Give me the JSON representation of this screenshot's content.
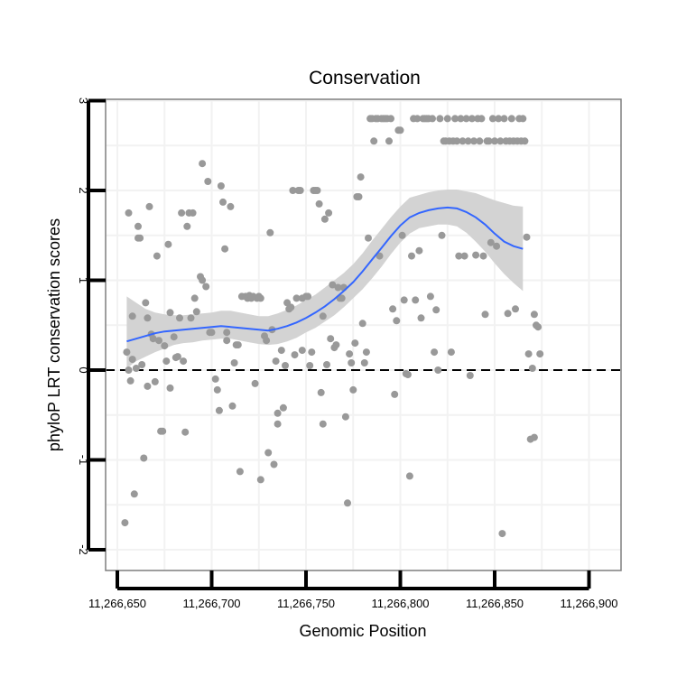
{
  "chart_data": {
    "type": "scatter",
    "title": "Conservation",
    "xlabel": "Genomic Position",
    "ylabel": "phyloP LRT conservation scores",
    "xlim": [
      11266645,
      11266908
    ],
    "ylim": [
      -2.2,
      3.05
    ],
    "x_ticks": [
      11266650,
      11266700,
      11266750,
      11266800,
      11266850,
      11266900
    ],
    "x_tick_labels": [
      "11,266,650",
      "11,266,700",
      "11,266,750",
      "11,266,800",
      "11,266,850",
      "11,266,900"
    ],
    "y_ticks": [
      -2,
      -1,
      0,
      1,
      2,
      3
    ],
    "y_tick_labels": [
      "-2",
      "-1",
      "0",
      "1",
      "2",
      "3"
    ],
    "reference_line": {
      "y": 0,
      "style": "dashed"
    },
    "grid": true,
    "colors": {
      "points": "#999999",
      "smooth": "#3366FF",
      "ribbon": "#D3D3D3",
      "panel_border": "#7F7F7F",
      "grid": "#F2F2F2",
      "reference": "#000000"
    },
    "points": [
      [
        11266654,
        -1.7
      ],
      [
        11266655,
        0.2
      ],
      [
        11266656,
        1.75
      ],
      [
        11266656,
        0.0
      ],
      [
        11266657,
        -0.12
      ],
      [
        11266658,
        0.6
      ],
      [
        11266658,
        0.12
      ],
      [
        11266659,
        -1.38
      ],
      [
        11266660,
        0.02
      ],
      [
        11266661,
        1.6
      ],
      [
        11266661,
        1.47
      ],
      [
        11266662,
        1.47
      ],
      [
        11266663,
        0.06
      ],
      [
        11266664,
        -0.98
      ],
      [
        11266665,
        0.75
      ],
      [
        11266666,
        -0.18
      ],
      [
        11266666,
        0.58
      ],
      [
        11266667,
        1.82
      ],
      [
        11266668,
        0.4
      ],
      [
        11266669,
        0.35
      ],
      [
        11266670,
        -0.13
      ],
      [
        11266671,
        1.27
      ],
      [
        11266672,
        0.33
      ],
      [
        11266673,
        -0.68
      ],
      [
        11266674,
        -0.68
      ],
      [
        11266675,
        0.27
      ],
      [
        11266676,
        0.1
      ],
      [
        11266677,
        1.4
      ],
      [
        11266678,
        -0.2
      ],
      [
        11266678,
        0.64
      ],
      [
        11266680,
        0.37
      ],
      [
        11266681,
        0.14
      ],
      [
        11266682,
        0.15
      ],
      [
        11266683,
        0.58
      ],
      [
        11266684,
        1.75
      ],
      [
        11266685,
        0.1
      ],
      [
        11266686,
        -0.69
      ],
      [
        11266687,
        1.6
      ],
      [
        11266688,
        1.75
      ],
      [
        11266689,
        0.58
      ],
      [
        11266690,
        1.75
      ],
      [
        11266691,
        0.8
      ],
      [
        11266692,
        0.65
      ],
      [
        11266694,
        1.04
      ],
      [
        11266695,
        2.3
      ],
      [
        11266695,
        1.0
      ],
      [
        11266697,
        0.93
      ],
      [
        11266698,
        2.1
      ],
      [
        11266699,
        0.42
      ],
      [
        11266700,
        0.42
      ],
      [
        11266702,
        -0.1
      ],
      [
        11266703,
        -0.22
      ],
      [
        11266704,
        -0.45
      ],
      [
        11266705,
        2.05
      ],
      [
        11266706,
        1.87
      ],
      [
        11266707,
        1.35
      ],
      [
        11266708,
        0.33
      ],
      [
        11266708,
        0.42
      ],
      [
        11266710,
        1.82
      ],
      [
        11266711,
        -0.4
      ],
      [
        11266712,
        0.08
      ],
      [
        11266713,
        0.28
      ],
      [
        11266714,
        0.28
      ],
      [
        11266715,
        -1.13
      ],
      [
        11266716,
        0.82
      ],
      [
        11266718,
        0.82
      ],
      [
        11266719,
        0.8
      ],
      [
        11266720,
        0.83
      ],
      [
        11266721,
        0.8
      ],
      [
        11266722,
        0.82
      ],
      [
        11266723,
        -0.15
      ],
      [
        11266724,
        0.8
      ],
      [
        11266725,
        0.82
      ],
      [
        11266726,
        0.8
      ],
      [
        11266726,
        -1.22
      ],
      [
        11266728,
        0.38
      ],
      [
        11266729,
        0.33
      ],
      [
        11266730,
        -0.92
      ],
      [
        11266731,
        1.53
      ],
      [
        11266732,
        0.45
      ],
      [
        11266733,
        -1.05
      ],
      [
        11266734,
        0.1
      ],
      [
        11266735,
        -0.48
      ],
      [
        11266735,
        -0.6
      ],
      [
        11266737,
        0.22
      ],
      [
        11266738,
        -0.42
      ],
      [
        11266739,
        0.05
      ],
      [
        11266740,
        0.75
      ],
      [
        11266741,
        0.68
      ],
      [
        11266742,
        0.7
      ],
      [
        11266743,
        2.0
      ],
      [
        11266744,
        0.17
      ],
      [
        11266745,
        0.8
      ],
      [
        11266746,
        2.0
      ],
      [
        11266747,
        2.0
      ],
      [
        11266748,
        0.8
      ],
      [
        11266748,
        0.22
      ],
      [
        11266750,
        0.82
      ],
      [
        11266751,
        0.82
      ],
      [
        11266752,
        0.05
      ],
      [
        11266753,
        0.2
      ],
      [
        11266754,
        2.0
      ],
      [
        11266755,
        2.0
      ],
      [
        11266756,
        2.0
      ],
      [
        11266757,
        1.85
      ],
      [
        11266758,
        -0.25
      ],
      [
        11266759,
        -0.6
      ],
      [
        11266759,
        0.6
      ],
      [
        11266760,
        1.68
      ],
      [
        11266761,
        0.06
      ],
      [
        11266762,
        1.75
      ],
      [
        11266763,
        0.35
      ],
      [
        11266764,
        0.95
      ],
      [
        11266765,
        0.25
      ],
      [
        11266766,
        0.28
      ],
      [
        11266767,
        0.92
      ],
      [
        11266768,
        0.8
      ],
      [
        11266769,
        0.8
      ],
      [
        11266770,
        0.92
      ],
      [
        11266771,
        -0.52
      ],
      [
        11266772,
        -1.48
      ],
      [
        11266773,
        0.18
      ],
      [
        11266774,
        0.08
      ],
      [
        11266775,
        -0.22
      ],
      [
        11266776,
        0.3
      ],
      [
        11266777,
        1.93
      ],
      [
        11266778,
        1.93
      ],
      [
        11266779,
        2.15
      ],
      [
        11266780,
        0.52
      ],
      [
        11266781,
        0.08
      ],
      [
        11266782,
        0.2
      ],
      [
        11266783,
        1.47
      ],
      [
        11266784,
        2.8
      ],
      [
        11266785,
        2.8
      ],
      [
        11266786,
        2.55
      ],
      [
        11266787,
        2.8
      ],
      [
        11266788,
        2.8
      ],
      [
        11266789,
        1.27
      ],
      [
        11266790,
        2.8
      ],
      [
        11266791,
        2.8
      ],
      [
        11266792,
        2.8
      ],
      [
        11266793,
        2.8
      ],
      [
        11266794,
        2.55
      ],
      [
        11266795,
        2.8
      ],
      [
        11266796,
        0.68
      ],
      [
        11266797,
        -0.27
      ],
      [
        11266798,
        0.55
      ],
      [
        11266799,
        2.67
      ],
      [
        11266800,
        2.67
      ],
      [
        11266801,
        1.5
      ],
      [
        11266802,
        0.78
      ],
      [
        11266803,
        -0.04
      ],
      [
        11266804,
        -0.05
      ],
      [
        11266805,
        -1.18
      ],
      [
        11266806,
        1.27
      ],
      [
        11266807,
        2.8
      ],
      [
        11266808,
        0.78
      ],
      [
        11266809,
        2.8
      ],
      [
        11266810,
        1.33
      ],
      [
        11266811,
        0.58
      ],
      [
        11266812,
        2.8
      ],
      [
        11266813,
        2.8
      ],
      [
        11266814,
        2.8
      ],
      [
        11266815,
        2.8
      ],
      [
        11266816,
        0.82
      ],
      [
        11266817,
        2.8
      ],
      [
        11266818,
        0.2
      ],
      [
        11266819,
        0.67
      ],
      [
        11266820,
        0.0
      ],
      [
        11266821,
        2.8
      ],
      [
        11266822,
        1.5
      ],
      [
        11266823,
        2.55
      ],
      [
        11266824,
        2.55
      ],
      [
        11266825,
        2.8
      ],
      [
        11266826,
        2.55
      ],
      [
        11266827,
        0.2
      ],
      [
        11266828,
        2.55
      ],
      [
        11266829,
        2.8
      ],
      [
        11266830,
        2.55
      ],
      [
        11266831,
        1.27
      ],
      [
        11266832,
        2.8
      ],
      [
        11266833,
        2.55
      ],
      [
        11266834,
        1.27
      ],
      [
        11266835,
        2.8
      ],
      [
        11266836,
        2.55
      ],
      [
        11266837,
        -0.06
      ],
      [
        11266838,
        2.8
      ],
      [
        11266839,
        2.55
      ],
      [
        11266840,
        1.28
      ],
      [
        11266841,
        2.8
      ],
      [
        11266842,
        2.55
      ],
      [
        11266843,
        2.8
      ],
      [
        11266844,
        1.27
      ],
      [
        11266845,
        0.62
      ],
      [
        11266846,
        2.55
      ],
      [
        11266847,
        2.55
      ],
      [
        11266848,
        1.42
      ],
      [
        11266849,
        2.8
      ],
      [
        11266850,
        2.55
      ],
      [
        11266851,
        1.38
      ],
      [
        11266852,
        2.8
      ],
      [
        11266853,
        2.55
      ],
      [
        11266854,
        -1.82
      ],
      [
        11266855,
        2.8
      ],
      [
        11266856,
        2.55
      ],
      [
        11266857,
        0.63
      ],
      [
        11266858,
        2.55
      ],
      [
        11266859,
        2.8
      ],
      [
        11266860,
        2.55
      ],
      [
        11266861,
        0.68
      ],
      [
        11266862,
        2.55
      ],
      [
        11266863,
        2.8
      ],
      [
        11266864,
        2.55
      ],
      [
        11266865,
        2.8
      ],
      [
        11266866,
        2.55
      ],
      [
        11266867,
        1.48
      ],
      [
        11266868,
        0.18
      ],
      [
        11266869,
        -0.77
      ],
      [
        11266870,
        0.02
      ],
      [
        11266871,
        0.62
      ],
      [
        11266871,
        -0.75
      ],
      [
        11266872,
        0.5
      ],
      [
        11266873,
        0.48
      ],
      [
        11266874,
        0.18
      ]
    ],
    "smooth_line": [
      [
        11266655,
        0.32
      ],
      [
        11266660,
        0.35
      ],
      [
        11266665,
        0.38
      ],
      [
        11266670,
        0.41
      ],
      [
        11266675,
        0.43
      ],
      [
        11266680,
        0.44
      ],
      [
        11266685,
        0.45
      ],
      [
        11266690,
        0.46
      ],
      [
        11266695,
        0.47
      ],
      [
        11266700,
        0.48
      ],
      [
        11266705,
        0.49
      ],
      [
        11266710,
        0.48
      ],
      [
        11266715,
        0.47
      ],
      [
        11266720,
        0.46
      ],
      [
        11266725,
        0.45
      ],
      [
        11266730,
        0.44
      ],
      [
        11266735,
        0.46
      ],
      [
        11266740,
        0.49
      ],
      [
        11266745,
        0.53
      ],
      [
        11266750,
        0.58
      ],
      [
        11266755,
        0.64
      ],
      [
        11266760,
        0.71
      ],
      [
        11266765,
        0.79
      ],
      [
        11266770,
        0.88
      ],
      [
        11266775,
        0.98
      ],
      [
        11266780,
        1.1
      ],
      [
        11266785,
        1.23
      ],
      [
        11266790,
        1.36
      ],
      [
        11266795,
        1.49
      ],
      [
        11266800,
        1.61
      ],
      [
        11266805,
        1.7
      ],
      [
        11266810,
        1.75
      ],
      [
        11266815,
        1.78
      ],
      [
        11266820,
        1.8
      ],
      [
        11266825,
        1.81
      ],
      [
        11266830,
        1.8
      ],
      [
        11266835,
        1.76
      ],
      [
        11266840,
        1.7
      ],
      [
        11266845,
        1.62
      ],
      [
        11266850,
        1.52
      ],
      [
        11266855,
        1.43
      ],
      [
        11266860,
        1.38
      ],
      [
        11266865,
        1.35
      ]
    ],
    "ribbon": [
      [
        11266655,
        0.02,
        0.82
      ],
      [
        11266660,
        0.1,
        0.75
      ],
      [
        11266665,
        0.15,
        0.68
      ],
      [
        11266670,
        0.2,
        0.64
      ],
      [
        11266675,
        0.24,
        0.62
      ],
      [
        11266680,
        0.28,
        0.61
      ],
      [
        11266685,
        0.3,
        0.61
      ],
      [
        11266690,
        0.31,
        0.62
      ],
      [
        11266695,
        0.33,
        0.63
      ],
      [
        11266700,
        0.34,
        0.64
      ],
      [
        11266705,
        0.35,
        0.66
      ],
      [
        11266710,
        0.35,
        0.66
      ],
      [
        11266715,
        0.33,
        0.64
      ],
      [
        11266720,
        0.31,
        0.62
      ],
      [
        11266725,
        0.29,
        0.6
      ],
      [
        11266730,
        0.28,
        0.6
      ],
      [
        11266735,
        0.29,
        0.63
      ],
      [
        11266740,
        0.32,
        0.67
      ],
      [
        11266745,
        0.36,
        0.72
      ],
      [
        11266750,
        0.42,
        0.78
      ],
      [
        11266755,
        0.47,
        0.84
      ],
      [
        11266760,
        0.54,
        0.92
      ],
      [
        11266765,
        0.61,
        1.0
      ],
      [
        11266770,
        0.7,
        1.08
      ],
      [
        11266775,
        0.8,
        1.18
      ],
      [
        11266780,
        0.9,
        1.3
      ],
      [
        11266785,
        1.02,
        1.44
      ],
      [
        11266790,
        1.15,
        1.57
      ],
      [
        11266795,
        1.29,
        1.7
      ],
      [
        11266800,
        1.42,
        1.82
      ],
      [
        11266805,
        1.52,
        1.92
      ],
      [
        11266810,
        1.58,
        1.95
      ],
      [
        11266815,
        1.6,
        1.98
      ],
      [
        11266820,
        1.62,
        2.0
      ],
      [
        11266825,
        1.62,
        2.01
      ],
      [
        11266830,
        1.6,
        2.01
      ],
      [
        11266835,
        1.53,
        1.99
      ],
      [
        11266840,
        1.43,
        1.97
      ],
      [
        11266845,
        1.32,
        1.93
      ],
      [
        11266850,
        1.19,
        1.89
      ],
      [
        11266855,
        1.07,
        1.86
      ],
      [
        11266860,
        0.97,
        1.83
      ],
      [
        11266865,
        0.88,
        1.82
      ]
    ]
  }
}
